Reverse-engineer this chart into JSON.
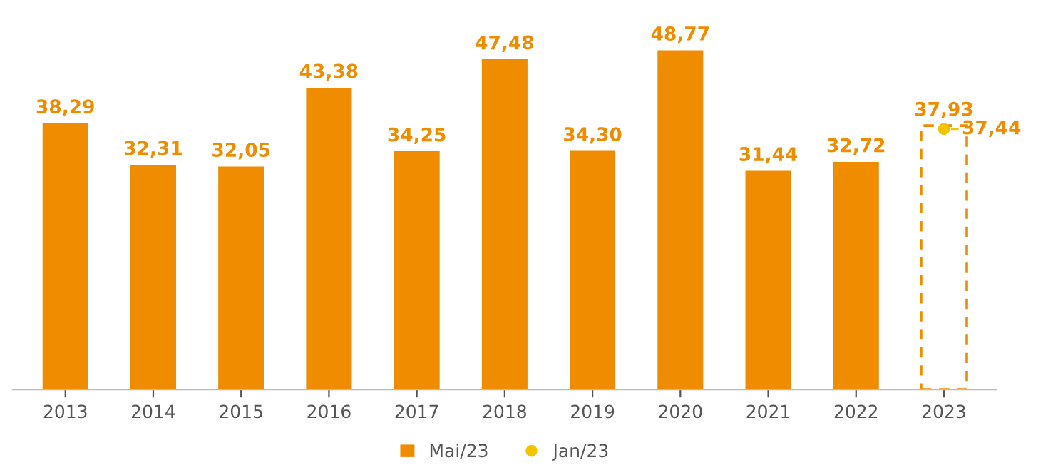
{
  "chart_data": {
    "type": "bar",
    "categories": [
      "2013",
      "2014",
      "2015",
      "2016",
      "2017",
      "2018",
      "2019",
      "2020",
      "2021",
      "2022",
      "2023"
    ],
    "series": [
      {
        "name": "Mai/23",
        "color": "#ef8c00",
        "values": [
          38.29,
          32.31,
          32.05,
          43.38,
          34.25,
          47.48,
          34.3,
          48.77,
          31.44,
          32.72,
          null
        ],
        "value_labels": [
          "38,29",
          "32,31",
          "32,05",
          "43,38",
          "34,25",
          "47,48",
          "34,30",
          "48,77",
          "31,44",
          "32,72",
          null
        ]
      },
      {
        "type": "bar",
        "line_style": "dashed",
        "color": "#ef8c00",
        "values": [
          null,
          null,
          null,
          null,
          null,
          null,
          null,
          null,
          null,
          null,
          37.93
        ],
        "value_labels": [
          null,
          null,
          null,
          null,
          null,
          null,
          null,
          null,
          null,
          null,
          "37,93"
        ]
      },
      {
        "name": "Jan/23",
        "type": "scatter",
        "marker": "circle",
        "color": "#f5c400",
        "values": [
          null,
          null,
          null,
          null,
          null,
          null,
          null,
          null,
          null,
          null,
          37.44
        ],
        "value_labels": [
          null,
          null,
          null,
          null,
          null,
          null,
          null,
          null,
          null,
          null,
          "37,44"
        ]
      }
    ],
    "legend": "bottom",
    "grid": false,
    "tick_labels": "x"
  }
}
